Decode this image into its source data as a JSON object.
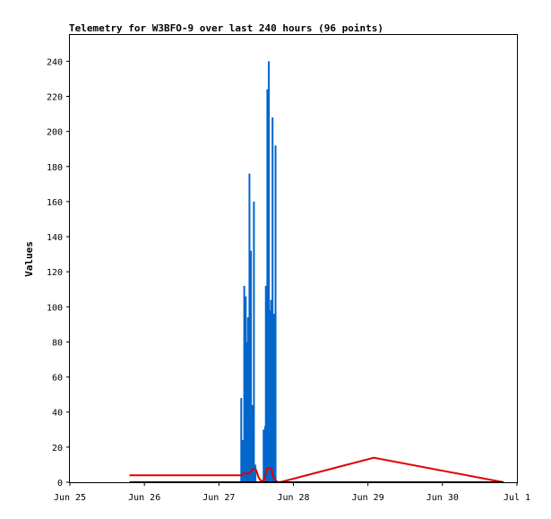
{
  "chart_data": {
    "type": "line",
    "title": "Telemetry for W3BFO-9 over last 240 hours (96 points)",
    "xlabel": "",
    "ylabel": "Values",
    "x_ticks": [
      "Jun 25",
      "Jun 26",
      "Jun 27",
      "Jun 28",
      "Jun 29",
      "Jun 30",
      "Jul 1"
    ],
    "xlim": [
      0,
      6
    ],
    "y_ticks": [
      0,
      20,
      40,
      60,
      80,
      100,
      120,
      140,
      160,
      180,
      200,
      220,
      240
    ],
    "ylim": [
      0,
      255
    ],
    "grid": false,
    "legend": "none",
    "colors": {
      "blue": "#0066cc",
      "red": "#e00000",
      "black": "#000000",
      "frame": "#000000"
    },
    "series": [
      {
        "color": "#0066cc",
        "style": "bars",
        "points": [
          [
            2.3,
            48
          ],
          [
            2.32,
            24
          ],
          [
            2.34,
            112
          ],
          [
            2.36,
            106
          ],
          [
            2.38,
            80
          ],
          [
            2.39,
            94
          ],
          [
            2.41,
            176
          ],
          [
            2.43,
            132
          ],
          [
            2.45,
            44
          ],
          [
            2.47,
            160
          ],
          [
            2.49,
            10
          ],
          [
            2.6,
            30
          ],
          [
            2.62,
            32
          ],
          [
            2.63,
            112
          ],
          [
            2.65,
            224
          ],
          [
            2.67,
            240
          ],
          [
            2.69,
            98
          ],
          [
            2.7,
            104
          ],
          [
            2.72,
            208
          ],
          [
            2.74,
            96
          ],
          [
            2.76,
            192
          ]
        ]
      },
      {
        "color": "#e00000",
        "style": "line",
        "points": [
          [
            0.8,
            4
          ],
          [
            2.3,
            4
          ],
          [
            2.32,
            5
          ],
          [
            2.4,
            5
          ],
          [
            2.46,
            7.5
          ],
          [
            2.5,
            7
          ],
          [
            2.53,
            3
          ],
          [
            2.56,
            1
          ],
          [
            2.6,
            0.5
          ],
          [
            2.65,
            8
          ],
          [
            2.7,
            8
          ],
          [
            2.73,
            3
          ],
          [
            2.78,
            0.2
          ],
          [
            2.82,
            0
          ],
          [
            4.08,
            14
          ],
          [
            5.82,
            0
          ]
        ]
      },
      {
        "color": "#000000",
        "style": "line",
        "points": [
          [
            0.8,
            0
          ],
          [
            5.82,
            0
          ]
        ]
      }
    ]
  }
}
